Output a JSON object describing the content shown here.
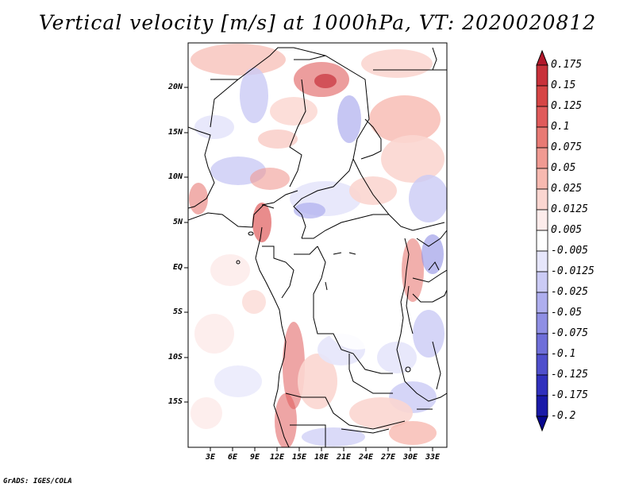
{
  "title": "Vertical velocity [m/s] at 1000hPa, VT: 2020020812",
  "credit": "GrADS: IGES/COLA",
  "map": {
    "lat_labels": [
      "20N",
      "15N",
      "10N",
      "5N",
      "EQ",
      "5S",
      "10S",
      "15S"
    ],
    "lon_labels": [
      "3E",
      "6E",
      "9E",
      "12E",
      "15E",
      "18E",
      "21E",
      "24E",
      "27E",
      "30E",
      "33E"
    ]
  },
  "colorbar": {
    "labels": [
      "0.175",
      "0.15",
      "0.125",
      "0.1",
      "0.075",
      "0.05",
      "0.025",
      "0.0125",
      "0.005",
      "-0.005",
      "-0.0125",
      "-0.025",
      "-0.05",
      "-0.075",
      "-0.1",
      "-0.125",
      "-0.175",
      "-0.2"
    ],
    "colors": [
      "#b2182b",
      "#c8313a",
      "#d64545",
      "#e05b5b",
      "#e87a74",
      "#f09a92",
      "#f7b9b0",
      "#fbd6d0",
      "#fdeceb",
      "#ffffff",
      "#e6e6fb",
      "#cbcbf5",
      "#aeaeee",
      "#8f8fe4",
      "#6f6fd9",
      "#4f4fcc",
      "#3030bd",
      "#1a1aa8",
      "#08088f"
    ]
  }
}
